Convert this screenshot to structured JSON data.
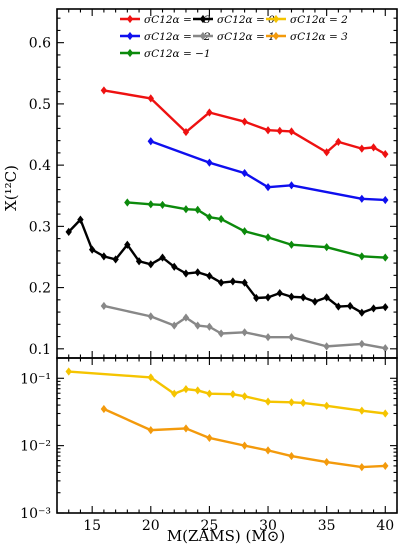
{
  "chart_data": [
    {
      "type": "line",
      "panel": "top",
      "ylabel": "X(¹²C)",
      "xlabel": "",
      "xlim": [
        12,
        41
      ],
      "ylim": [
        0.085,
        0.655
      ],
      "yscale": "linear",
      "yticks": [
        0.1,
        0.2,
        0.3,
        0.4,
        0.5,
        0.6
      ],
      "ytick_labels": [
        "0.1",
        "0.2",
        "0.3",
        "0.4",
        "0.5",
        "0.6"
      ],
      "xticks": [
        15,
        20,
        25,
        30,
        35,
        40
      ],
      "legend": {
        "placement": "top-right",
        "columns": 3
      },
      "series": [
        {
          "name": "σC12α = −3",
          "color": "#ee1111",
          "x": [
            16,
            20,
            23,
            25,
            28,
            30,
            31,
            32,
            35,
            36,
            38,
            39,
            40
          ],
          "y": [
            0.522,
            0.509,
            0.454,
            0.486,
            0.471,
            0.457,
            0.456,
            0.455,
            0.421,
            0.438,
            0.427,
            0.429,
            0.418
          ]
        },
        {
          "name": "σC12α = −2",
          "color": "#0f0fee",
          "x": [
            20,
            25,
            28,
            30,
            32,
            38,
            40
          ],
          "y": [
            0.439,
            0.404,
            0.387,
            0.364,
            0.367,
            0.345,
            0.343
          ]
        },
        {
          "name": "σC12α = −1",
          "color": "#0c8a0c",
          "x": [
            18,
            20,
            21,
            23,
            24,
            25,
            26,
            28,
            30,
            32,
            35,
            38,
            40
          ],
          "y": [
            0.339,
            0.336,
            0.335,
            0.328,
            0.327,
            0.315,
            0.312,
            0.292,
            0.282,
            0.27,
            0.266,
            0.251,
            0.249
          ]
        },
        {
          "name": "σC12α = 0",
          "color": "#000000",
          "x": [
            13,
            14,
            15,
            16,
            17,
            18,
            19,
            20,
            21,
            22,
            23,
            24,
            25,
            26,
            27,
            28,
            29,
            30,
            31,
            32,
            33,
            34,
            35,
            36,
            37,
            38,
            39,
            40
          ],
          "y": [
            0.291,
            0.311,
            0.262,
            0.251,
            0.246,
            0.27,
            0.243,
            0.238,
            0.249,
            0.234,
            0.223,
            0.225,
            0.219,
            0.208,
            0.21,
            0.208,
            0.183,
            0.184,
            0.191,
            0.185,
            0.184,
            0.177,
            0.184,
            0.169,
            0.17,
            0.159,
            0.166,
            0.168
          ]
        },
        {
          "name": "σC12α = 1",
          "color": "#888888",
          "x": [
            16,
            20,
            22,
            23,
            24,
            25,
            26,
            28,
            30,
            32,
            35,
            38,
            40
          ],
          "y": [
            0.17,
            0.153,
            0.138,
            0.151,
            0.138,
            0.136,
            0.125,
            0.127,
            0.119,
            0.119,
            0.104,
            0.108,
            0.101
          ]
        }
      ]
    },
    {
      "type": "line",
      "panel": "bottom",
      "ylabel": "",
      "xlabel": "M(ZAMS) (M⊙)",
      "xlim": [
        12,
        41
      ],
      "ylim": [
        0.001,
        0.2
      ],
      "yscale": "log",
      "yticks": [
        0.001,
        0.01,
        0.1
      ],
      "ytick_labels": [
        "10⁻³",
        "10⁻²",
        "10⁻¹"
      ],
      "xticks": [
        15,
        20,
        25,
        30,
        35,
        40
      ],
      "xtick_labels": [
        "15",
        "20",
        "25",
        "30",
        "35",
        "40"
      ],
      "series": [
        {
          "name": "σC12α = 2",
          "color": "#f5c400",
          "x": [
            13,
            20,
            22,
            23,
            24,
            25,
            27,
            28,
            30,
            32,
            33,
            35,
            38,
            40
          ],
          "y": [
            0.126,
            0.103,
            0.059,
            0.069,
            0.066,
            0.059,
            0.058,
            0.054,
            0.045,
            0.044,
            0.043,
            0.039,
            0.033,
            0.03
          ]
        },
        {
          "name": "σC12α = 3",
          "color": "#f39a0c",
          "x": [
            16,
            20,
            23,
            25,
            28,
            30,
            32,
            35,
            38,
            40
          ],
          "y": [
            0.035,
            0.017,
            0.018,
            0.013,
            0.01,
            0.0085,
            0.007,
            0.0057,
            0.0048,
            0.005
          ]
        }
      ]
    }
  ]
}
